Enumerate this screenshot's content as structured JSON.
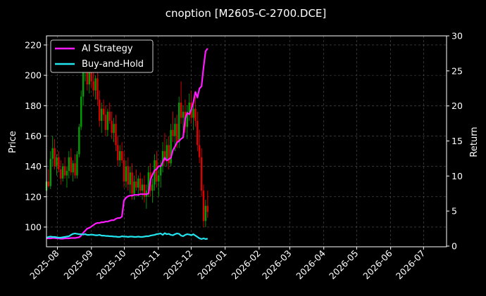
{
  "chart_data": {
    "type": "line",
    "title": "cnoption [M2605-C-2700.DCE]",
    "ylabel_left": "Price",
    "ylabel_right": "Return",
    "x_ticks": [
      "2025-08",
      "2025-09",
      "2025-10",
      "2025-11",
      "2025-12",
      "2026-01",
      "2026-02",
      "2026-03",
      "2026-04",
      "2026-05",
      "2026-06",
      "2026-07"
    ],
    "x_range": [
      "2025-07-22",
      "2026-07-22"
    ],
    "ylim_left": [
      87,
      226
    ],
    "yticks_left": [
      100,
      120,
      140,
      160,
      180,
      200,
      220
    ],
    "ylim_right": [
      -0.1,
      30
    ],
    "yticks_right": [
      0,
      5,
      10,
      15,
      20,
      25,
      30
    ],
    "grid": true,
    "legend_position": "top-left",
    "colors": {
      "ai": "#ff1aff",
      "bh": "#22e5f0",
      "up": "#00a000",
      "down": "#e00000",
      "grid": "#555555"
    },
    "candles": [
      {
        "o": 124,
        "h": 134,
        "l": 120,
        "c": 130
      },
      {
        "o": 130,
        "h": 138,
        "l": 126,
        "c": 127
      },
      {
        "o": 127,
        "h": 150,
        "l": 125,
        "c": 145
      },
      {
        "o": 145,
        "h": 160,
        "l": 140,
        "c": 152
      },
      {
        "o": 152,
        "h": 158,
        "l": 138,
        "c": 140
      },
      {
        "o": 140,
        "h": 148,
        "l": 134,
        "c": 146
      },
      {
        "o": 146,
        "h": 150,
        "l": 136,
        "c": 138
      },
      {
        "o": 138,
        "h": 144,
        "l": 128,
        "c": 132
      },
      {
        "o": 132,
        "h": 142,
        "l": 130,
        "c": 140
      },
      {
        "o": 140,
        "h": 146,
        "l": 132,
        "c": 134
      },
      {
        "o": 134,
        "h": 140,
        "l": 126,
        "c": 137
      },
      {
        "o": 137,
        "h": 150,
        "l": 132,
        "c": 146
      },
      {
        "o": 146,
        "h": 152,
        "l": 134,
        "c": 136
      },
      {
        "o": 136,
        "h": 144,
        "l": 130,
        "c": 142
      },
      {
        "o": 142,
        "h": 148,
        "l": 132,
        "c": 134
      },
      {
        "o": 134,
        "h": 150,
        "l": 132,
        "c": 148
      },
      {
        "o": 148,
        "h": 168,
        "l": 146,
        "c": 166
      },
      {
        "o": 166,
        "h": 190,
        "l": 164,
        "c": 186
      },
      {
        "o": 186,
        "h": 208,
        "l": 180,
        "c": 202
      },
      {
        "o": 202,
        "h": 222,
        "l": 196,
        "c": 212
      },
      {
        "o": 212,
        "h": 218,
        "l": 190,
        "c": 194
      },
      {
        "o": 194,
        "h": 206,
        "l": 188,
        "c": 204
      },
      {
        "o": 204,
        "h": 210,
        "l": 192,
        "c": 196
      },
      {
        "o": 196,
        "h": 202,
        "l": 186,
        "c": 190
      },
      {
        "o": 190,
        "h": 200,
        "l": 184,
        "c": 198
      },
      {
        "o": 198,
        "h": 204,
        "l": 180,
        "c": 184
      },
      {
        "o": 184,
        "h": 190,
        "l": 166,
        "c": 170
      },
      {
        "o": 170,
        "h": 182,
        "l": 162,
        "c": 178
      },
      {
        "o": 178,
        "h": 184,
        "l": 170,
        "c": 174
      },
      {
        "o": 174,
        "h": 180,
        "l": 160,
        "c": 164
      },
      {
        "o": 164,
        "h": 178,
        "l": 160,
        "c": 176
      },
      {
        "o": 176,
        "h": 182,
        "l": 168,
        "c": 170
      },
      {
        "o": 170,
        "h": 176,
        "l": 158,
        "c": 162
      },
      {
        "o": 162,
        "h": 172,
        "l": 156,
        "c": 168
      },
      {
        "o": 168,
        "h": 174,
        "l": 150,
        "c": 154
      },
      {
        "o": 154,
        "h": 160,
        "l": 140,
        "c": 144
      },
      {
        "o": 144,
        "h": 154,
        "l": 140,
        "c": 150
      },
      {
        "o": 150,
        "h": 156,
        "l": 142,
        "c": 144
      },
      {
        "o": 144,
        "h": 150,
        "l": 126,
        "c": 130
      },
      {
        "o": 130,
        "h": 144,
        "l": 126,
        "c": 140
      },
      {
        "o": 140,
        "h": 146,
        "l": 124,
        "c": 128
      },
      {
        "o": 128,
        "h": 140,
        "l": 122,
        "c": 136
      },
      {
        "o": 136,
        "h": 142,
        "l": 118,
        "c": 122
      },
      {
        "o": 122,
        "h": 134,
        "l": 118,
        "c": 130
      },
      {
        "o": 130,
        "h": 138,
        "l": 124,
        "c": 126
      },
      {
        "o": 126,
        "h": 134,
        "l": 120,
        "c": 132
      },
      {
        "o": 132,
        "h": 136,
        "l": 122,
        "c": 124
      },
      {
        "o": 124,
        "h": 132,
        "l": 118,
        "c": 128
      },
      {
        "o": 128,
        "h": 134,
        "l": 116,
        "c": 120
      },
      {
        "o": 120,
        "h": 128,
        "l": 112,
        "c": 124
      },
      {
        "o": 124,
        "h": 140,
        "l": 120,
        "c": 136
      },
      {
        "o": 136,
        "h": 142,
        "l": 120,
        "c": 124
      },
      {
        "o": 124,
        "h": 132,
        "l": 116,
        "c": 128
      },
      {
        "o": 128,
        "h": 148,
        "l": 124,
        "c": 144
      },
      {
        "o": 144,
        "h": 150,
        "l": 126,
        "c": 130
      },
      {
        "o": 130,
        "h": 138,
        "l": 120,
        "c": 134
      },
      {
        "o": 134,
        "h": 144,
        "l": 126,
        "c": 140
      },
      {
        "o": 140,
        "h": 156,
        "l": 136,
        "c": 150
      },
      {
        "o": 150,
        "h": 162,
        "l": 140,
        "c": 144
      },
      {
        "o": 144,
        "h": 158,
        "l": 140,
        "c": 154
      },
      {
        "o": 154,
        "h": 160,
        "l": 138,
        "c": 142
      },
      {
        "o": 142,
        "h": 168,
        "l": 140,
        "c": 164
      },
      {
        "o": 164,
        "h": 176,
        "l": 156,
        "c": 160
      },
      {
        "o": 160,
        "h": 172,
        "l": 150,
        "c": 168
      },
      {
        "o": 168,
        "h": 174,
        "l": 152,
        "c": 156
      },
      {
        "o": 156,
        "h": 186,
        "l": 152,
        "c": 182
      },
      {
        "o": 182,
        "h": 196,
        "l": 168,
        "c": 172
      },
      {
        "o": 172,
        "h": 180,
        "l": 160,
        "c": 176
      },
      {
        "o": 176,
        "h": 184,
        "l": 162,
        "c": 166
      },
      {
        "o": 166,
        "h": 180,
        "l": 158,
        "c": 176
      },
      {
        "o": 176,
        "h": 188,
        "l": 170,
        "c": 182
      },
      {
        "o": 182,
        "h": 190,
        "l": 168,
        "c": 172
      },
      {
        "o": 172,
        "h": 182,
        "l": 164,
        "c": 178
      },
      {
        "o": 178,
        "h": 186,
        "l": 166,
        "c": 170
      },
      {
        "o": 170,
        "h": 176,
        "l": 150,
        "c": 154
      },
      {
        "o": 154,
        "h": 164,
        "l": 142,
        "c": 146
      },
      {
        "o": 146,
        "h": 152,
        "l": 120,
        "c": 124
      },
      {
        "o": 124,
        "h": 128,
        "l": 100,
        "c": 104
      },
      {
        "o": 104,
        "h": 118,
        "l": 100,
        "c": 114
      },
      {
        "o": 114,
        "h": 124,
        "l": 106,
        "c": 110
      }
    ],
    "series": [
      {
        "name": "AI Strategy",
        "values": [
          1.1,
          1.1,
          1.1,
          1.15,
          1.15,
          1.1,
          1.1,
          1.05,
          1.05,
          1.1,
          1.1,
          1.1,
          1.15,
          1.15,
          1.15,
          1.2,
          1.25,
          1.5,
          1.9,
          2.2,
          2.5,
          2.6,
          2.8,
          3.0,
          3.2,
          3.3,
          3.3,
          3.4,
          3.4,
          3.5,
          3.5,
          3.6,
          3.7,
          3.7,
          3.9,
          4.0,
          4.0,
          4.2,
          6.5,
          6.9,
          7.1,
          7.2,
          7.2,
          7.3,
          7.3,
          7.3,
          7.4,
          7.4,
          7.4,
          7.4,
          7.5,
          9.5,
          10.2,
          10.8,
          11.0,
          11.4,
          11.4,
          12.0,
          12.6,
          12.2,
          12.4,
          12.6,
          13.7,
          14.2,
          14.8,
          15.0,
          15.3,
          15.5,
          18.2,
          19.0,
          18.8,
          19.5,
          20.5,
          22.0,
          21.2,
          22.5,
          22.8,
          25.5,
          27.8,
          28.2
        ]
      },
      {
        "name": "Buy-and-Hold",
        "values": [
          1.2,
          1.3,
          1.35,
          1.3,
          1.3,
          1.25,
          1.2,
          1.2,
          1.25,
          1.3,
          1.35,
          1.4,
          1.6,
          1.75,
          1.8,
          1.75,
          1.7,
          1.7,
          1.65,
          1.7,
          1.6,
          1.6,
          1.65,
          1.6,
          1.55,
          1.55,
          1.6,
          1.5,
          1.5,
          1.45,
          1.45,
          1.4,
          1.4,
          1.35,
          1.35,
          1.3,
          1.3,
          1.4,
          1.35,
          1.35,
          1.3,
          1.35,
          1.35,
          1.3,
          1.3,
          1.35,
          1.3,
          1.3,
          1.35,
          1.4,
          1.4,
          1.5,
          1.55,
          1.6,
          1.7,
          1.75,
          1.8,
          1.6,
          1.85,
          1.7,
          1.75,
          1.6,
          1.55,
          1.7,
          1.8,
          1.75,
          1.5,
          1.4,
          1.6,
          1.7,
          1.65,
          1.55,
          1.7,
          1.5,
          1.3,
          1.1,
          1.0,
          1.1,
          1.0,
          1.05
        ]
      }
    ]
  }
}
